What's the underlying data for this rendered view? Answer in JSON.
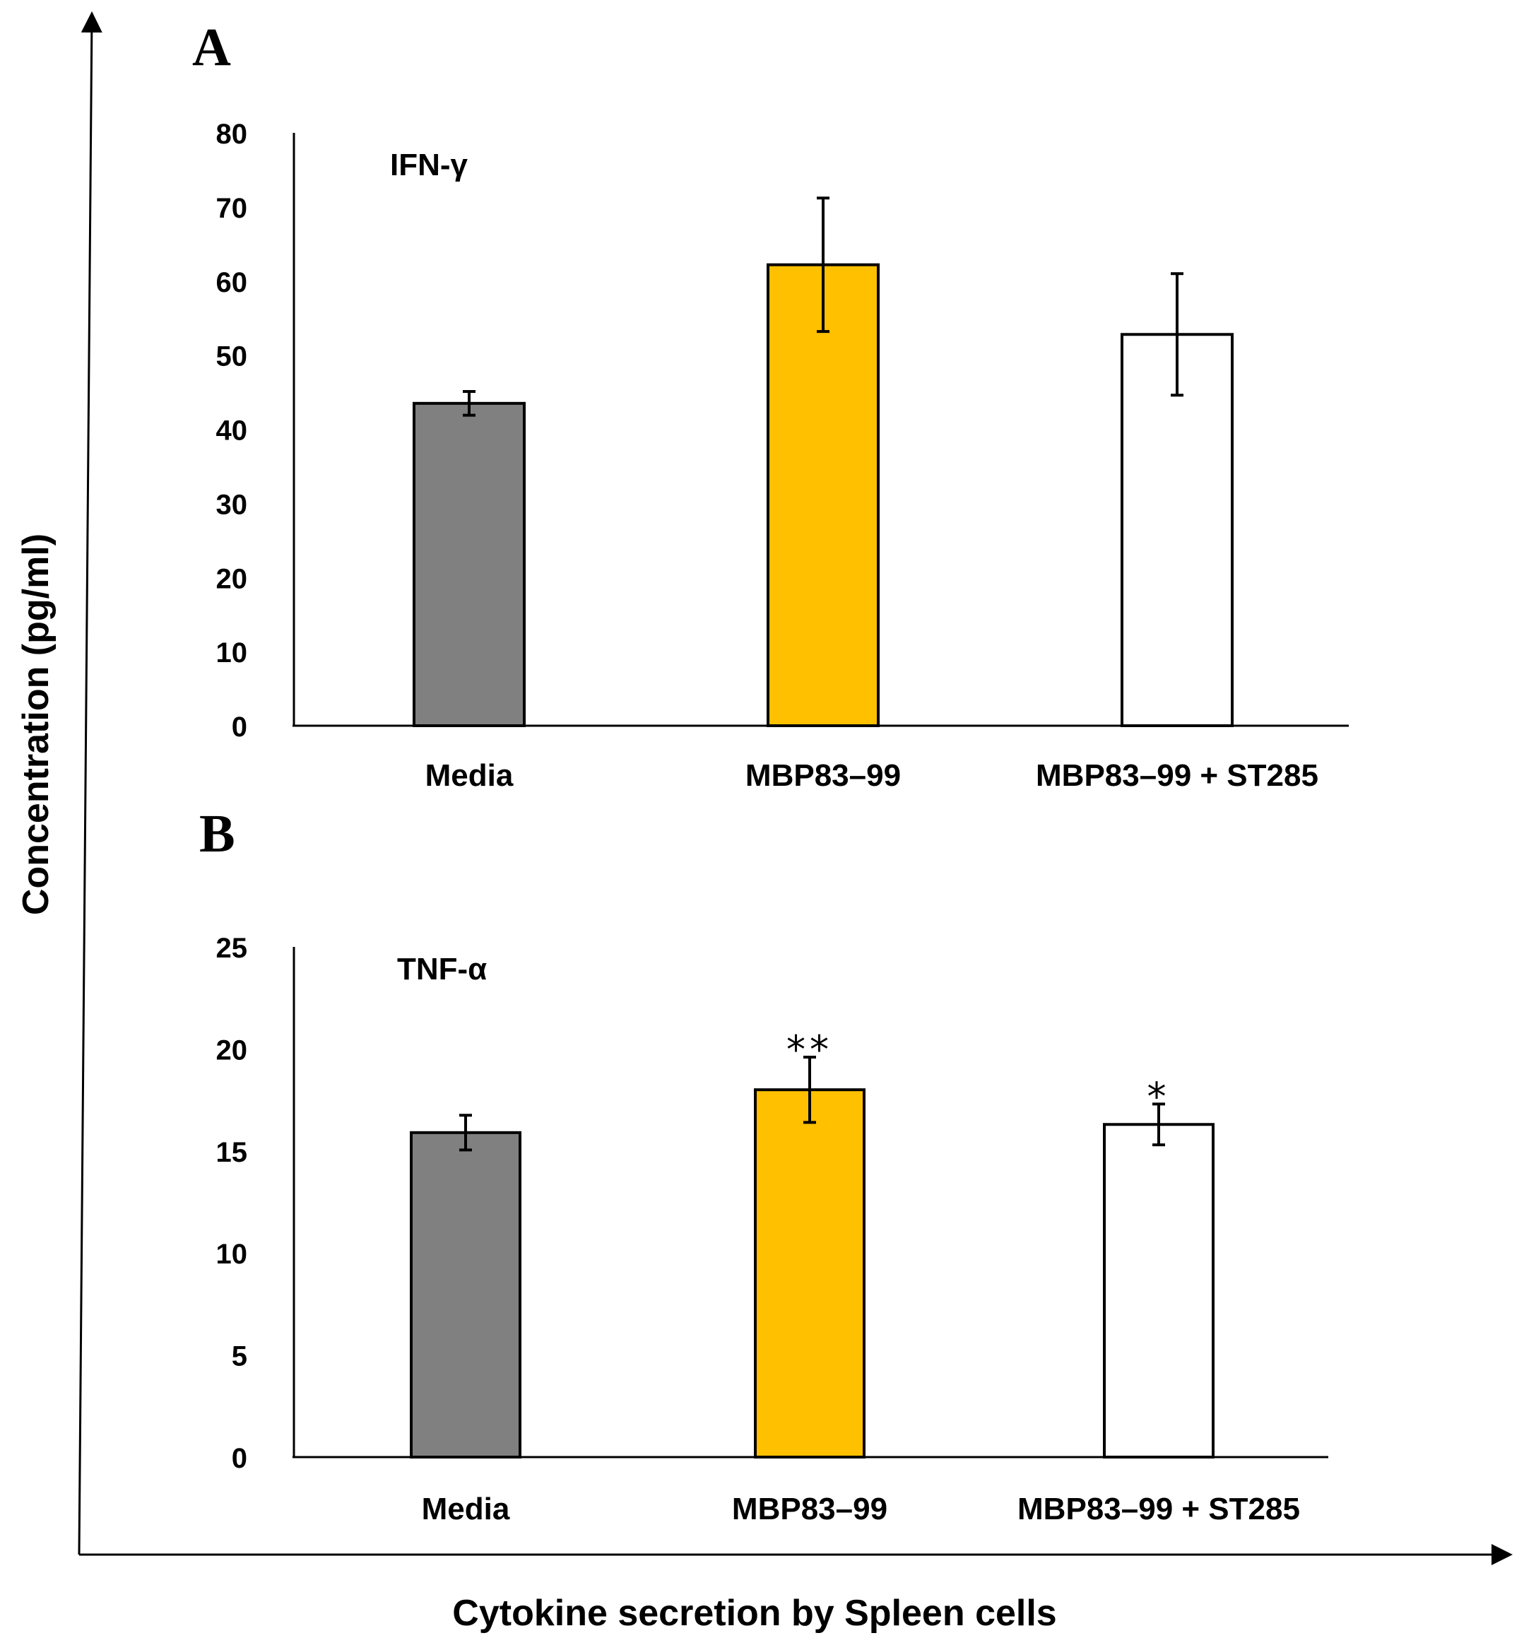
{
  "figure": {
    "outer_y_label": "Concentration (pg/ml)",
    "outer_x_label": "Cytokine secretion by Spleen cells"
  },
  "colors": {
    "media": "#808080",
    "mbp": "#FFC000",
    "mbp_st285": "#FFFFFF",
    "stroke": "#000000"
  },
  "chart_data": [
    {
      "panel": "A",
      "type": "bar",
      "title": "IFN-γ",
      "xlabel": "",
      "ylabel": "Concentration (pg/ml)",
      "ylim": [
        0,
        80
      ],
      "yticks": [
        0,
        10,
        20,
        30,
        40,
        50,
        60,
        70,
        80
      ],
      "categories": [
        "Media",
        "MBP83–99",
        "MBP83–99 + ST285"
      ],
      "values": [
        43.5,
        62.2,
        52.8
      ],
      "errors": [
        1.6,
        9.0,
        8.2
      ],
      "annotations": [
        "",
        "",
        ""
      ]
    },
    {
      "panel": "B",
      "type": "bar",
      "title": "TNF-α",
      "xlabel": "",
      "ylabel": "Concentration (pg/ml)",
      "ylim": [
        0,
        25
      ],
      "yticks": [
        0,
        5,
        10,
        15,
        20,
        25
      ],
      "categories": [
        "Media",
        "MBP83–99",
        "MBP83–99 + ST285"
      ],
      "values": [
        15.9,
        18.0,
        16.3
      ],
      "errors": [
        0.85,
        1.6,
        1.0
      ],
      "annotations": [
        "",
        "**",
        "*"
      ]
    }
  ]
}
